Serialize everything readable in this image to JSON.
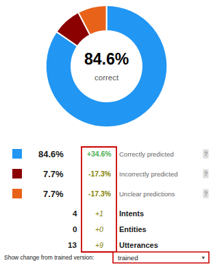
{
  "chart_data": {
    "type": "pie",
    "categories": [
      "Correctly predicted",
      "Incorrectly predicted",
      "Unclear predictions"
    ],
    "values": [
      84.6,
      7.7,
      7.7
    ],
    "value_labels": [
      "84.6%",
      "7.7%",
      "7.7%"
    ],
    "colors": [
      "#2196F3",
      "#8B0000",
      "#E8621A"
    ],
    "center_text": "84.6%",
    "center_subtext": "correct",
    "changes": [
      "+34.6%",
      "-17.3%",
      "-17.3%"
    ],
    "change_colors": [
      "#4CAF50",
      "#808000",
      "#808000"
    ],
    "badge_text": "?",
    "stats": [
      {
        "label": "Intents",
        "value": 4,
        "change": "+1"
      },
      {
        "label": "Entities",
        "value": 0,
        "change": "+0"
      },
      {
        "label": "Utterances",
        "value": 13,
        "change": "+9"
      }
    ],
    "stat_change_color": "#808000",
    "box_color": "#CC0000",
    "dropdown_label": "Show change from trained version:",
    "dropdown_value": "trained",
    "dropdown_arrow": "▼",
    "text_color": "#1a1a1a",
    "label_color": "#666666"
  }
}
